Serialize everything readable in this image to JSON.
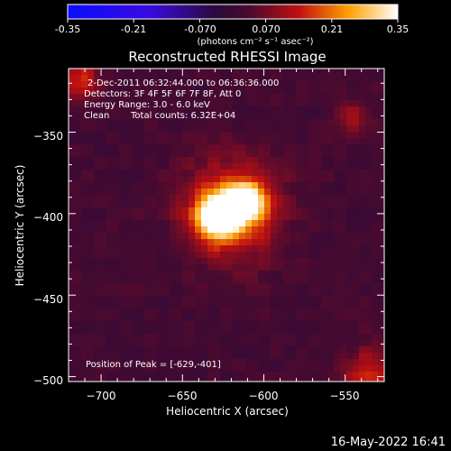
{
  "colorbar": {
    "ticks": [
      "-0.35",
      "-0.21",
      "-0.070",
      "0.070",
      "0.21",
      "0.35"
    ],
    "tick_values": [
      -0.35,
      -0.21,
      -0.07,
      0.07,
      0.21,
      0.35
    ],
    "range": [
      -0.35,
      0.35
    ],
    "units_label": "(photons cm⁻² s⁻¹ asec⁻²)"
  },
  "title": "Reconstructed RHESSI Image",
  "annotations": {
    "time_range": "2-Dec-2011 06:32:44.000 to 06:36:36.000",
    "detectors": "Detectors: 3F 4F 5F 6F 7F 8F, Att 0",
    "energy_range": "Energy Range: 3.0 - 6.0 keV",
    "algorithm": "Clean",
    "total_counts": "Total counts: 6.32E+04",
    "peak_position": "Position of Peak = [-629,-401]"
  },
  "footer_timestamp": "16-May-2022 16:41",
  "chart_data": {
    "type": "heatmap",
    "title": "Reconstructed RHESSI Image",
    "xlabel": "Heliocentric X (arcsec)",
    "ylabel": "Heliocentric Y (arcsec)",
    "xlim": [
      -720,
      -526
    ],
    "ylim": [
      -503,
      -311
    ],
    "x_ticks": [
      -700,
      -650,
      -600,
      -550
    ],
    "y_ticks": [
      -350,
      -400,
      -450,
      -500
    ],
    "x_tick_labels": [
      "−700",
      "−650",
      "−600",
      "−550"
    ],
    "y_tick_labels": [
      "−350",
      "−400",
      "−450",
      "−500"
    ],
    "peak": [
      -629,
      -401
    ],
    "colormap": "hot-blue",
    "value_range": [
      -0.35,
      0.35
    ],
    "sources": [
      {
        "x": -628,
        "y": -402,
        "amp": 0.36,
        "sigma": 9
      },
      {
        "x": -611,
        "y": -393,
        "amp": 0.28,
        "sigma": 8
      },
      {
        "x": -620,
        "y": -398,
        "amp": 0.2,
        "sigma": 20
      }
    ],
    "background": 0.02,
    "corner_hotspots": [
      {
        "x": -715,
        "y": -318,
        "amp": 0.14,
        "sigma": 10
      },
      {
        "x": -535,
        "y": -500,
        "amp": 0.13,
        "sigma": 12
      },
      {
        "x": -545,
        "y": -340,
        "amp": 0.08,
        "sigma": 8
      }
    ]
  }
}
